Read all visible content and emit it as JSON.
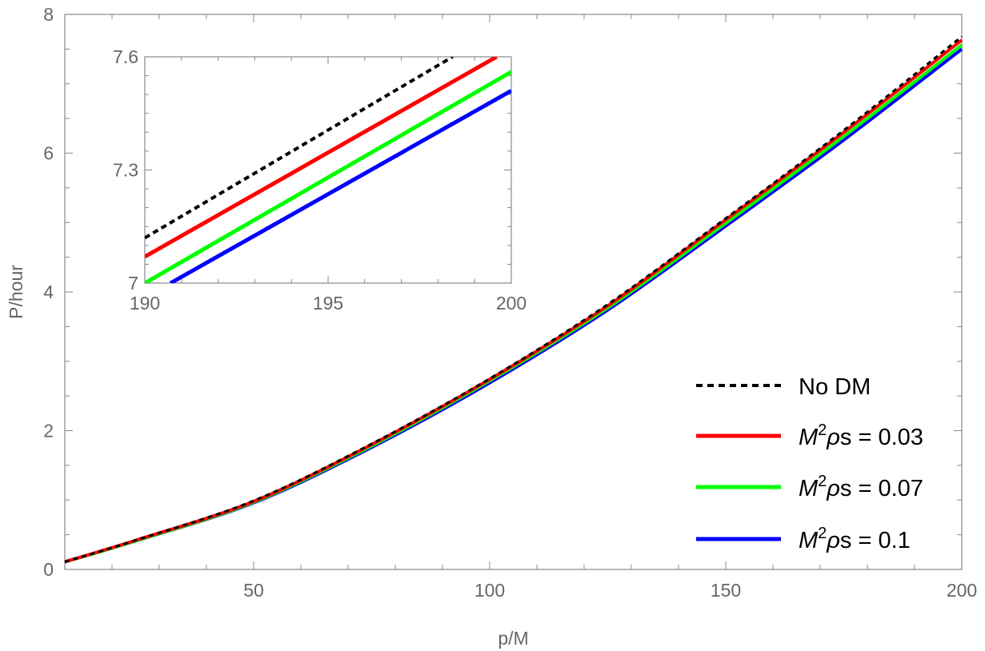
{
  "chart_data": [
    {
      "type": "line",
      "xlabel": "p/M",
      "ylabel": "P/hour",
      "xlim": [
        10,
        200
      ],
      "ylim": [
        0,
        8
      ],
      "xticks": [
        50,
        100,
        150,
        200
      ],
      "xtick_labels": [
        "50",
        "100",
        "150",
        "200"
      ],
      "yticks": [
        0,
        2,
        4,
        6,
        8
      ],
      "ytick_labels": [
        "0",
        "2",
        "4",
        "6",
        "8"
      ],
      "grid": false,
      "legend_position": "bottom-right",
      "series": [
        {
          "name": "No DM",
          "color": "#000000",
          "style": "dashed",
          "x": [
            10,
            25,
            50,
            75,
            100,
            125,
            150,
            175,
            200
          ],
          "y": [
            0.11,
            0.42,
            0.99,
            1.81,
            2.75,
            3.82,
            5.06,
            6.33,
            7.68
          ]
        },
        {
          "name": "M²ρs = 0.03",
          "color": "#ff0000",
          "style": "solid",
          "x": [
            10,
            25,
            50,
            75,
            100,
            125,
            150,
            175,
            200
          ],
          "y": [
            0.11,
            0.42,
            0.98,
            1.8,
            2.74,
            3.8,
            5.04,
            6.3,
            7.63
          ]
        },
        {
          "name": "M²ρs = 0.07",
          "color": "#00ff00",
          "style": "solid",
          "x": [
            10,
            25,
            50,
            75,
            100,
            125,
            150,
            175,
            200
          ],
          "y": [
            0.11,
            0.41,
            0.97,
            1.78,
            2.72,
            3.77,
            4.99,
            6.24,
            7.56
          ]
        },
        {
          "name": "M²ρs = 0.1",
          "color": "#0000ff",
          "style": "solid",
          "x": [
            10,
            25,
            50,
            75,
            100,
            125,
            150,
            175,
            200
          ],
          "y": [
            0.11,
            0.41,
            0.96,
            1.76,
            2.69,
            3.74,
            4.95,
            6.19,
            7.5
          ]
        }
      ],
      "legend": [
        {
          "label": "No DM",
          "italic_prefix": "",
          "sup": "",
          "suffix": ""
        },
        {
          "label": "",
          "italic_prefix": "M",
          "sup": "2",
          "suffix": "ρs = 0.03"
        },
        {
          "label": "",
          "italic_prefix": "M",
          "sup": "2",
          "suffix": "ρs = 0.07"
        },
        {
          "label": "",
          "italic_prefix": "M",
          "sup": "2",
          "suffix": "ρs = 0.1"
        }
      ]
    },
    {
      "type": "line",
      "role": "inset",
      "xlim": [
        190,
        200
      ],
      "ylim": [
        7,
        7.6
      ],
      "xticks": [
        190,
        195,
        200
      ],
      "xtick_labels": [
        "190",
        "195",
        "200"
      ],
      "yticks": [
        7,
        7.3,
        7.6
      ],
      "ytick_labels": [
        "7",
        "7.3",
        "7.6"
      ],
      "series": [
        {
          "name": "No DM",
          "color": "#000000",
          "style": "dashed",
          "x": [
            190,
            198.4
          ],
          "y": [
            7.12,
            7.6
          ]
        },
        {
          "name": "M²ρs = 0.03",
          "color": "#ff0000",
          "style": "solid",
          "x": [
            190,
            199.6
          ],
          "y": [
            7.07,
            7.6
          ]
        },
        {
          "name": "M²ρs = 0.07",
          "color": "#00ff00",
          "style": "solid",
          "x": [
            190,
            200
          ],
          "y": [
            7.0,
            7.56
          ]
        },
        {
          "name": "M²ρs = 0.1",
          "color": "#0000ff",
          "style": "solid",
          "x": [
            190.7,
            200
          ],
          "y": [
            7.0,
            7.51
          ]
        }
      ]
    }
  ]
}
